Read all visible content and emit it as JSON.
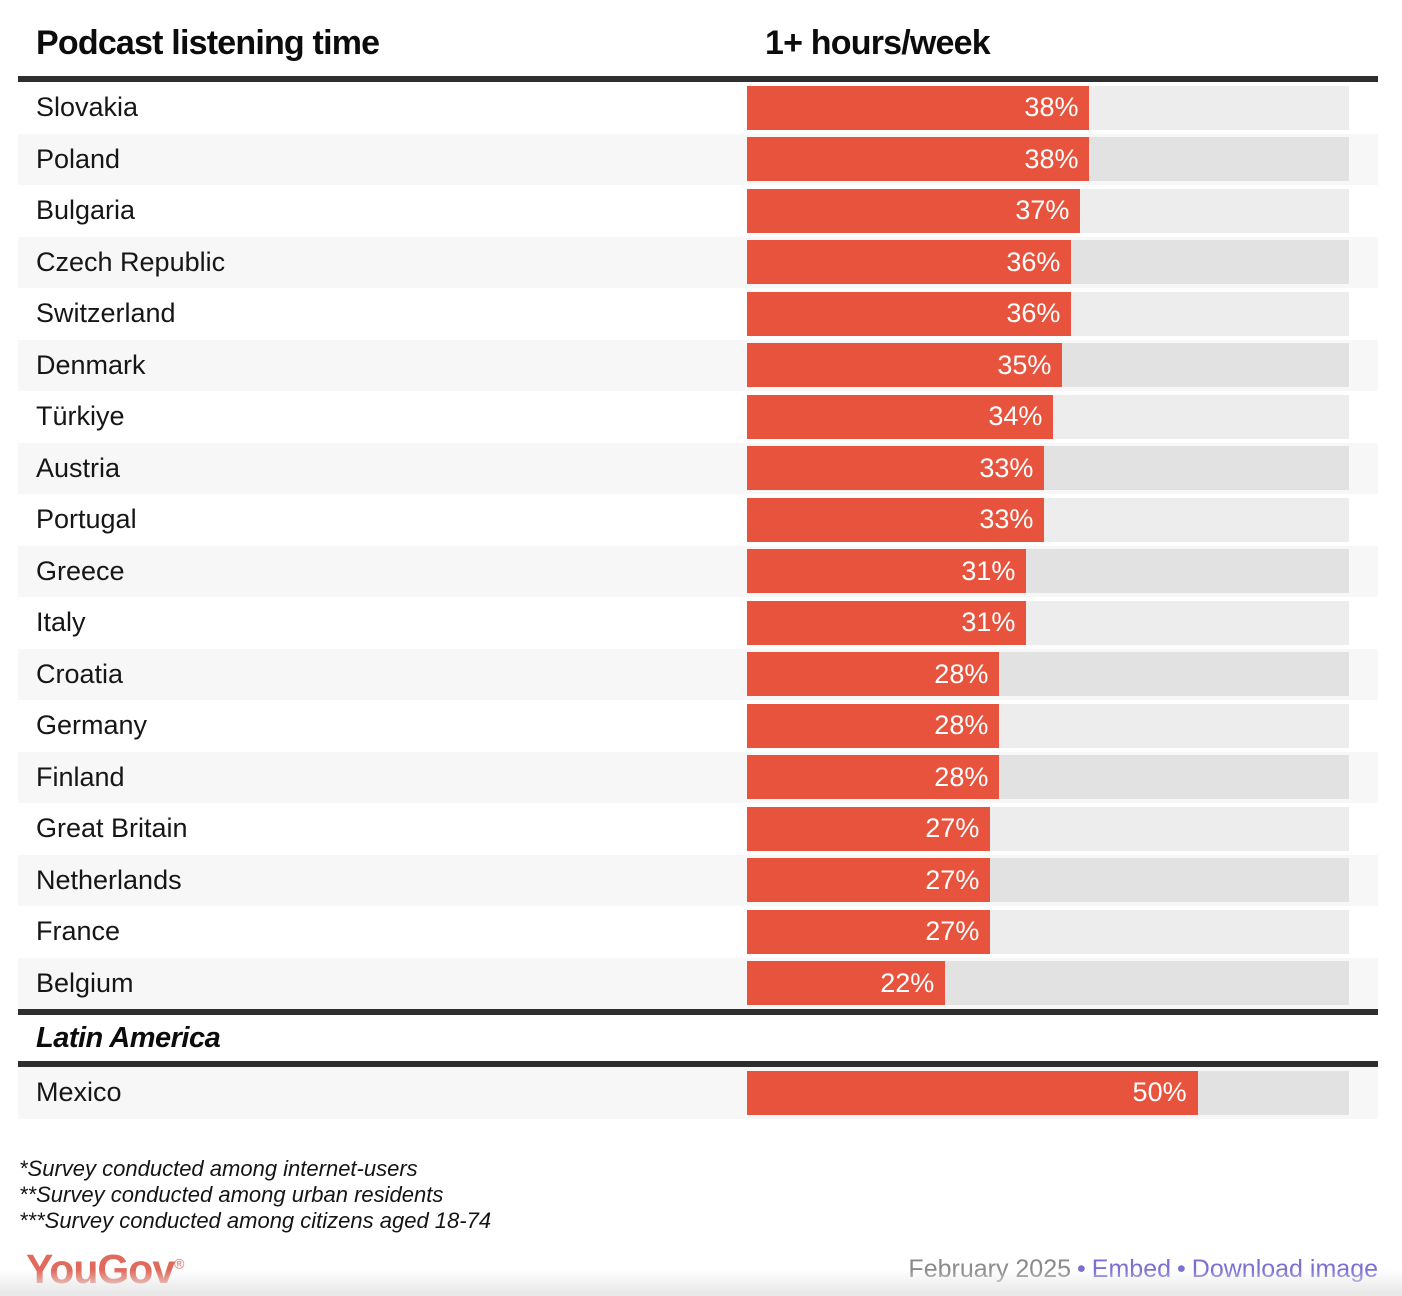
{
  "chart_data": {
    "type": "bar",
    "title": "Podcast listening time",
    "value_header": "1+ hours/week",
    "unit": "%",
    "orientation": "horizontal",
    "xlim": [
      0,
      66.8
    ],
    "grid": false,
    "legend": "none",
    "bar_color": "#E8533D",
    "sections": [
      {
        "region": null,
        "rows": [
          {
            "country": "Slovakia",
            "value": 38
          },
          {
            "country": "Poland",
            "value": 38
          },
          {
            "country": "Bulgaria",
            "value": 37
          },
          {
            "country": "Czech Republic",
            "value": 36
          },
          {
            "country": "Switzerland",
            "value": 36
          },
          {
            "country": "Denmark",
            "value": 35
          },
          {
            "country": "Türkiye",
            "value": 34
          },
          {
            "country": "Austria",
            "value": 33
          },
          {
            "country": "Portugal",
            "value": 33
          },
          {
            "country": "Greece",
            "value": 31
          },
          {
            "country": "Italy",
            "value": 31
          },
          {
            "country": "Croatia",
            "value": 28
          },
          {
            "country": "Germany",
            "value": 28
          },
          {
            "country": "Finland",
            "value": 28
          },
          {
            "country": "Great Britain",
            "value": 27
          },
          {
            "country": "Netherlands",
            "value": 27
          },
          {
            "country": "France",
            "value": 27
          },
          {
            "country": "Belgium",
            "value": 22
          }
        ]
      },
      {
        "region": "Latin America",
        "rows": [
          {
            "country": "Mexico",
            "value": 50
          }
        ]
      }
    ],
    "categories": [
      "Slovakia",
      "Poland",
      "Bulgaria",
      "Czech Republic",
      "Switzerland",
      "Denmark",
      "Türkiye",
      "Austria",
      "Portugal",
      "Greece",
      "Italy",
      "Croatia",
      "Germany",
      "Finland",
      "Great Britain",
      "Netherlands",
      "France",
      "Belgium",
      "Mexico"
    ],
    "values": [
      38,
      38,
      37,
      36,
      36,
      35,
      34,
      33,
      33,
      31,
      31,
      28,
      28,
      28,
      27,
      27,
      27,
      22,
      50
    ]
  },
  "footnotes": [
    "*Survey conducted among internet-users",
    "**Survey conducted among urban residents",
    "***Survey conducted among citizens aged 18-74"
  ],
  "footer": {
    "brand": "YouGov",
    "registered_mark": "®",
    "date": "February 2025",
    "separator": "•",
    "links": [
      {
        "label": "Embed"
      },
      {
        "label": "Download image"
      }
    ]
  },
  "colors": {
    "bar": "#E8533D",
    "row_alt_bg": "#F7F7F7",
    "track": "#EDEDED",
    "track_alt": "#E2E2E2",
    "rule": "#2E2E2E",
    "text": "#161616",
    "footer_date": "#8A8A8A",
    "link": "#7B6FD4",
    "logo": "#E06A5B"
  }
}
